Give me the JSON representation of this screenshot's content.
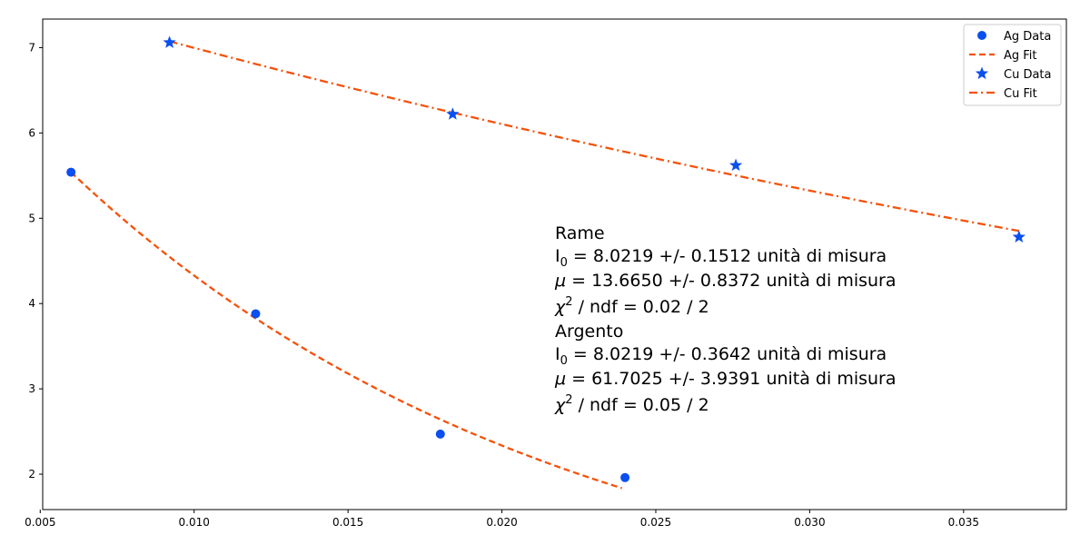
{
  "chart_data": {
    "type": "scatter",
    "xlim": [
      0.00508,
      0.03834
    ],
    "ylim": [
      1.585,
      7.335
    ],
    "x_ticks": [
      0.005,
      0.01,
      0.015,
      0.02,
      0.025,
      0.03,
      0.035
    ],
    "x_tick_labels": [
      "0.005",
      "0.010",
      "0.015",
      "0.020",
      "0.025",
      "0.030",
      "0.035"
    ],
    "y_ticks": [
      2,
      3,
      4,
      5,
      6,
      7
    ],
    "y_tick_labels": [
      "2",
      "3",
      "4",
      "5",
      "6",
      "7"
    ],
    "grid": false,
    "legend_position": "top-right",
    "colors": {
      "data": "#0b4ff0",
      "fit": "#f4520b"
    },
    "series": [
      {
        "name": "Ag Data",
        "kind": "points",
        "marker": "circle",
        "x": [
          0.006,
          0.012,
          0.018,
          0.024
        ],
        "y": [
          5.54,
          3.88,
          2.47,
          1.96
        ]
      },
      {
        "name": "Ag Fit",
        "kind": "line",
        "dash": "dashed",
        "model": "exp",
        "I0": 8.0219,
        "mu": 61.7025,
        "x_range": [
          0.006,
          0.0239
        ]
      },
      {
        "name": "Cu Data",
        "kind": "points",
        "marker": "star",
        "x": [
          0.0092,
          0.0184,
          0.0276,
          0.0368
        ],
        "y": [
          7.06,
          6.22,
          5.62,
          4.78
        ]
      },
      {
        "name": "Cu Fit",
        "kind": "line",
        "dash": "dashdot",
        "model": "exp",
        "I0": 8.0219,
        "mu": 13.665,
        "x_range": [
          0.0092,
          0.0368
        ]
      }
    ],
    "annotation": {
      "rame_title": "Rame",
      "rame_i0_value": " = 8.0219 +/- 0.1512 unità di misura",
      "rame_mu_value": " = 13.6650 +/- 0.8372 unità di misura",
      "rame_chi_value": " / ndf = 0.02 / 2",
      "argento_title": "Argento",
      "argento_i0_value": " = 8.0219 +/- 0.3642 unità di misura",
      "argento_mu_value": " = 61.7025 +/- 3.9391 unità di misura",
      "argento_chi_value": " / ndf = 0.05 / 2",
      "i0_symbol": "I",
      "i0_subscript": "0",
      "mu_symbol": "μ",
      "chi_symbol": "χ",
      "chi_superscript": "2"
    }
  }
}
